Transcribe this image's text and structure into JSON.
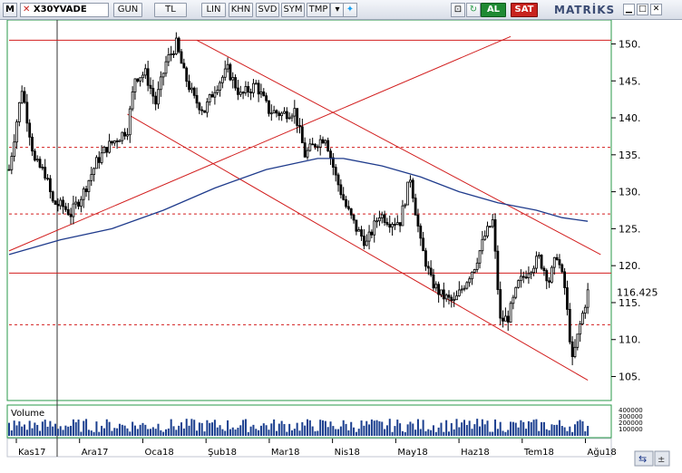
{
  "toolbar": {
    "menu_icon": "M",
    "symbol": "X30YVADE",
    "buttons": [
      "GUN",
      "TL",
      "LIN",
      "KHN",
      "SVD",
      "SYM",
      "TMP"
    ],
    "buy_label": "AL",
    "sell_label": "SAT",
    "brand": "MATRİKS",
    "minimize_icon": "minimize-icon",
    "restore_icon": "restore-icon",
    "close_icon": "close-icon"
  },
  "volume_panel": {
    "title": "Volume"
  },
  "colors": {
    "candles": "#000000",
    "trend_lines": "#d21e1e",
    "moving_average": "#1f3b8c",
    "volume_bars": "#1b3f8f",
    "grid": "#2a9a4a"
  },
  "chart_data": {
    "type": "candlestick",
    "symbol": "X30YVADE",
    "ylim": [
      102,
      153
    ],
    "yticks": [
      105,
      110,
      115,
      120,
      125,
      130,
      135,
      140,
      145,
      150
    ],
    "ytick_labels": [
      "105.",
      "110.",
      "115.",
      "120.",
      "125.",
      "130.",
      "135.",
      "140.",
      "145.",
      "150."
    ],
    "last_value_label": "116.425",
    "last_value": 116.425,
    "x_labels": [
      "Kas17",
      "Ara17",
      "Oca18",
      "Şub18",
      "Mar18",
      "Nis18",
      "May18",
      "Haz18",
      "Tem18",
      "Ağu18"
    ],
    "close_series": [
      {
        "t": 0,
        "v": 133.0
      },
      {
        "t": 5,
        "v": 144.0
      },
      {
        "t": 10,
        "v": 134.0
      },
      {
        "t": 14,
        "v": 132.5
      },
      {
        "t": 17,
        "v": 128.5
      },
      {
        "t": 21,
        "v": 128.0
      },
      {
        "t": 24,
        "v": 127.0
      },
      {
        "t": 29,
        "v": 130.0
      },
      {
        "t": 34,
        "v": 134.0
      },
      {
        "t": 38,
        "v": 136.0
      },
      {
        "t": 43,
        "v": 137.5
      },
      {
        "t": 46,
        "v": 138.5
      },
      {
        "t": 49,
        "v": 145.5
      },
      {
        "t": 53,
        "v": 146.0
      },
      {
        "t": 57,
        "v": 142.0
      },
      {
        "t": 61,
        "v": 147.5
      },
      {
        "t": 65,
        "v": 150.0
      },
      {
        "t": 68,
        "v": 146.0
      },
      {
        "t": 72,
        "v": 142.5
      },
      {
        "t": 76,
        "v": 141.0
      },
      {
        "t": 80,
        "v": 144.0
      },
      {
        "t": 85,
        "v": 146.5
      },
      {
        "t": 90,
        "v": 143.0
      },
      {
        "t": 96,
        "v": 144.5
      },
      {
        "t": 101,
        "v": 141.0
      },
      {
        "t": 106,
        "v": 140.5
      },
      {
        "t": 111,
        "v": 141.0
      },
      {
        "t": 115,
        "v": 135.0
      },
      {
        "t": 119,
        "v": 136.5
      },
      {
        "t": 123,
        "v": 137.5
      },
      {
        "t": 127,
        "v": 132.0
      },
      {
        "t": 131,
        "v": 128.0
      },
      {
        "t": 135,
        "v": 125.0
      },
      {
        "t": 139,
        "v": 123.0
      },
      {
        "t": 144,
        "v": 127.0
      },
      {
        "t": 148,
        "v": 126.0
      },
      {
        "t": 152,
        "v": 126.0
      },
      {
        "t": 156,
        "v": 132.0
      },
      {
        "t": 160,
        "v": 123.0
      },
      {
        "t": 164,
        "v": 118.0
      },
      {
        "t": 168,
        "v": 116.0
      },
      {
        "t": 173,
        "v": 115.0
      },
      {
        "t": 177,
        "v": 117.5
      },
      {
        "t": 181,
        "v": 120.0
      },
      {
        "t": 185,
        "v": 124.0
      },
      {
        "t": 188,
        "v": 126.0
      },
      {
        "t": 191,
        "v": 112.5
      },
      {
        "t": 194,
        "v": 113.0
      },
      {
        "t": 198,
        "v": 117.5
      },
      {
        "t": 202,
        "v": 119.5
      },
      {
        "t": 206,
        "v": 121.0
      },
      {
        "t": 210,
        "v": 118.0
      },
      {
        "t": 213,
        "v": 121.5
      },
      {
        "t": 216,
        "v": 117.0
      },
      {
        "t": 219,
        "v": 107.0
      },
      {
        "t": 222,
        "v": 112.0
      },
      {
        "t": 225,
        "v": 116.4
      }
    ],
    "moving_average_series": [
      {
        "t": 0,
        "v": 121.5
      },
      {
        "t": 20,
        "v": 123.5
      },
      {
        "t": 40,
        "v": 125.0
      },
      {
        "t": 60,
        "v": 127.5
      },
      {
        "t": 80,
        "v": 130.5
      },
      {
        "t": 100,
        "v": 133.0
      },
      {
        "t": 120,
        "v": 134.5
      },
      {
        "t": 130,
        "v": 134.5
      },
      {
        "t": 145,
        "v": 133.5
      },
      {
        "t": 160,
        "v": 132.0
      },
      {
        "t": 175,
        "v": 130.0
      },
      {
        "t": 190,
        "v": 128.5
      },
      {
        "t": 205,
        "v": 127.5
      },
      {
        "t": 215,
        "v": 126.5
      },
      {
        "t": 225,
        "v": 126.0
      }
    ],
    "horizontal_lines": [
      {
        "value": 150.5,
        "style": "solid"
      },
      {
        "value": 136.0,
        "style": "dashed"
      },
      {
        "value": 127.0,
        "style": "dashed"
      },
      {
        "value": 119.0,
        "style": "solid"
      },
      {
        "value": 112.0,
        "style": "dashed"
      }
    ],
    "trend_lines": [
      {
        "t0": 73,
        "v0": 150.5,
        "t1": 230,
        "v1": 121.5
      },
      {
        "t0": 46,
        "v0": 140.5,
        "t1": 225,
        "v1": 104.5
      },
      {
        "t0": 0,
        "v0": 122.0,
        "t1": 195,
        "v1": 151.0
      }
    ],
    "t_range": [
      0,
      232
    ],
    "volume_ylabels": [
      "400000",
      "300000",
      "200000",
      "100000"
    ]
  }
}
